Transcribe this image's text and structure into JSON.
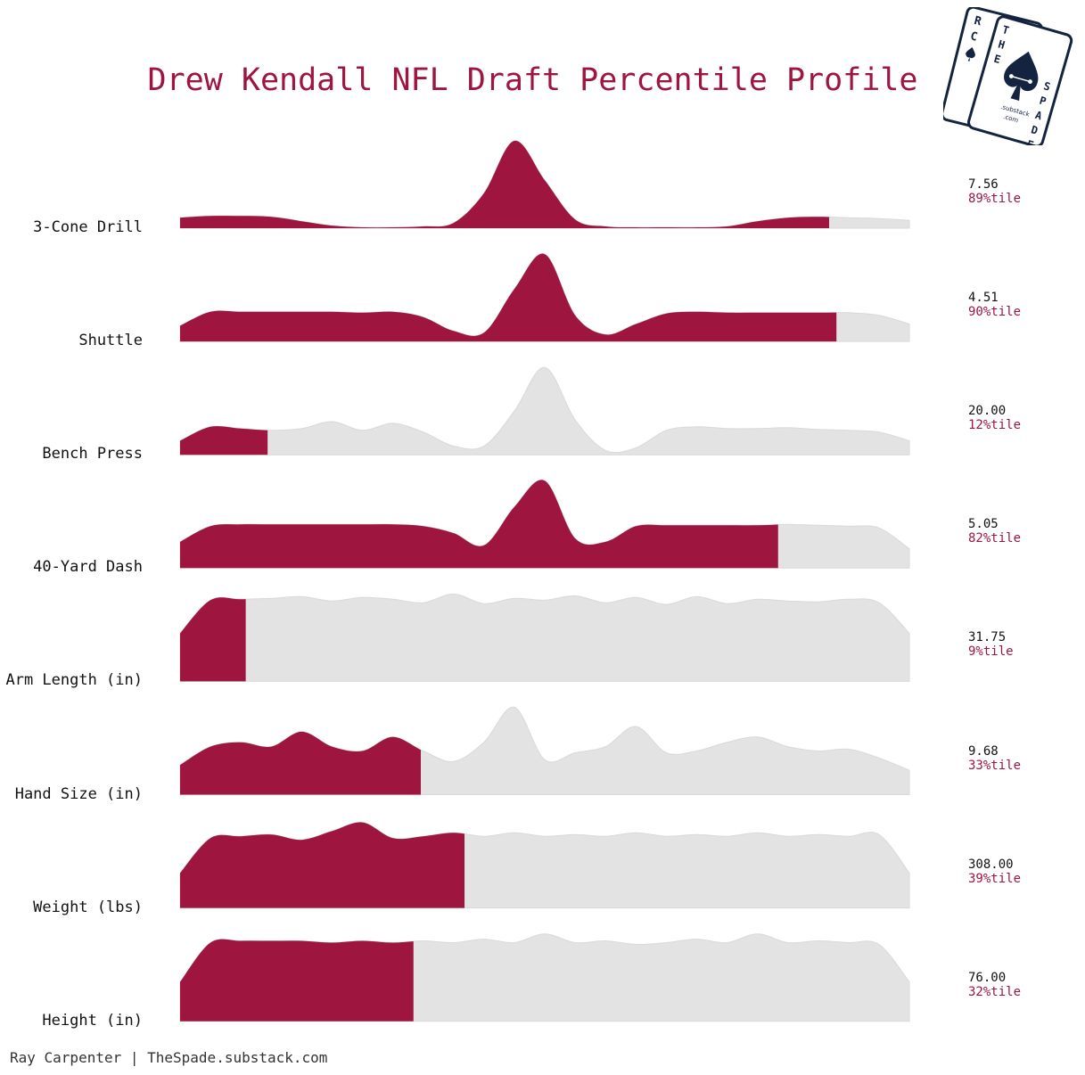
{
  "title": "Drew Kendall NFL Draft Percentile Profile",
  "credit": "Ray Carpenter | TheSpade.substack.com",
  "colors": {
    "accent": "#9e1540",
    "background_ridge": "#e3e3e3",
    "logo_navy": "#14233f"
  },
  "logo": {
    "back_card_letters": [
      "R",
      "C"
    ],
    "front_card_letters": [
      "T",
      "H",
      "E",
      "S",
      "P",
      "A",
      "D",
      "E"
    ],
    "substack": ".substack",
    "com": ".com"
  },
  "chart_data": {
    "type": "ridgeline",
    "metrics": [
      {
        "label": "3-Cone Drill",
        "value": "7.56",
        "percentile": 89,
        "percentile_label": "89%tile",
        "density": [
          0.12,
          0.14,
          0.14,
          0.13,
          0.08,
          0.03,
          0.01,
          0.01,
          0.02,
          0.06,
          0.4,
          1.0,
          0.55,
          0.1,
          0.02,
          0.01,
          0.01,
          0.01,
          0.02,
          0.08,
          0.12,
          0.13,
          0.12,
          0.11,
          0.09
        ]
      },
      {
        "label": "Shuttle",
        "value": "4.51",
        "percentile": 90,
        "percentile_label": "90%tile",
        "density": [
          0.18,
          0.34,
          0.34,
          0.34,
          0.34,
          0.34,
          0.33,
          0.34,
          0.28,
          0.12,
          0.1,
          0.6,
          1.0,
          0.3,
          0.08,
          0.2,
          0.32,
          0.34,
          0.33,
          0.33,
          0.33,
          0.33,
          0.33,
          0.3,
          0.2
        ]
      },
      {
        "label": "Bench Press",
        "value": "20.00",
        "percentile": 12,
        "percentile_label": "12%tile",
        "density": [
          0.16,
          0.32,
          0.3,
          0.28,
          0.3,
          0.38,
          0.28,
          0.36,
          0.26,
          0.1,
          0.1,
          0.5,
          1.0,
          0.4,
          0.05,
          0.08,
          0.28,
          0.32,
          0.3,
          0.3,
          0.31,
          0.29,
          0.28,
          0.26,
          0.16
        ]
      },
      {
        "label": "40-Yard Dash",
        "value": "5.05",
        "percentile": 82,
        "percentile_label": "82%tile",
        "density": [
          0.3,
          0.48,
          0.5,
          0.5,
          0.5,
          0.5,
          0.5,
          0.5,
          0.48,
          0.4,
          0.26,
          0.7,
          1.0,
          0.34,
          0.3,
          0.48,
          0.49,
          0.49,
          0.49,
          0.49,
          0.5,
          0.49,
          0.48,
          0.46,
          0.22
        ]
      },
      {
        "label": "Arm Length (in)",
        "value": "31.75",
        "percentile": 9,
        "percentile_label": "9%tile",
        "density": [
          0.55,
          0.93,
          0.94,
          0.95,
          0.97,
          0.92,
          0.96,
          0.94,
          0.9,
          1.0,
          0.89,
          0.95,
          0.93,
          0.98,
          0.9,
          0.96,
          0.88,
          0.97,
          0.89,
          0.94,
          0.92,
          0.91,
          0.94,
          0.9,
          0.55
        ]
      },
      {
        "label": "Hand Size (in)",
        "value": "9.68",
        "percentile": 33,
        "percentile_label": "33%tile",
        "density": [
          0.34,
          0.55,
          0.6,
          0.55,
          0.72,
          0.55,
          0.5,
          0.66,
          0.5,
          0.38,
          0.6,
          1.0,
          0.4,
          0.48,
          0.55,
          0.78,
          0.48,
          0.5,
          0.6,
          0.66,
          0.55,
          0.5,
          0.52,
          0.42,
          0.28
        ]
      },
      {
        "label": "Weight (lbs)",
        "value": "308.00",
        "percentile": 39,
        "percentile_label": "39%tile",
        "density": [
          0.4,
          0.8,
          0.82,
          0.84,
          0.78,
          0.88,
          0.98,
          0.8,
          0.82,
          0.86,
          0.82,
          0.86,
          0.82,
          0.84,
          0.82,
          0.86,
          0.82,
          0.84,
          0.82,
          0.86,
          0.82,
          0.84,
          0.82,
          0.84,
          0.4
        ]
      },
      {
        "label": "Height (in)",
        "value": "76.00",
        "percentile": 32,
        "percentile_label": "32%tile",
        "density": [
          0.45,
          0.9,
          0.92,
          0.92,
          0.92,
          0.9,
          0.92,
          0.9,
          0.92,
          0.9,
          0.94,
          0.9,
          1.0,
          0.9,
          0.92,
          0.88,
          0.9,
          0.94,
          0.9,
          1.0,
          0.9,
          0.92,
          0.9,
          0.88,
          0.45
        ]
      }
    ]
  }
}
